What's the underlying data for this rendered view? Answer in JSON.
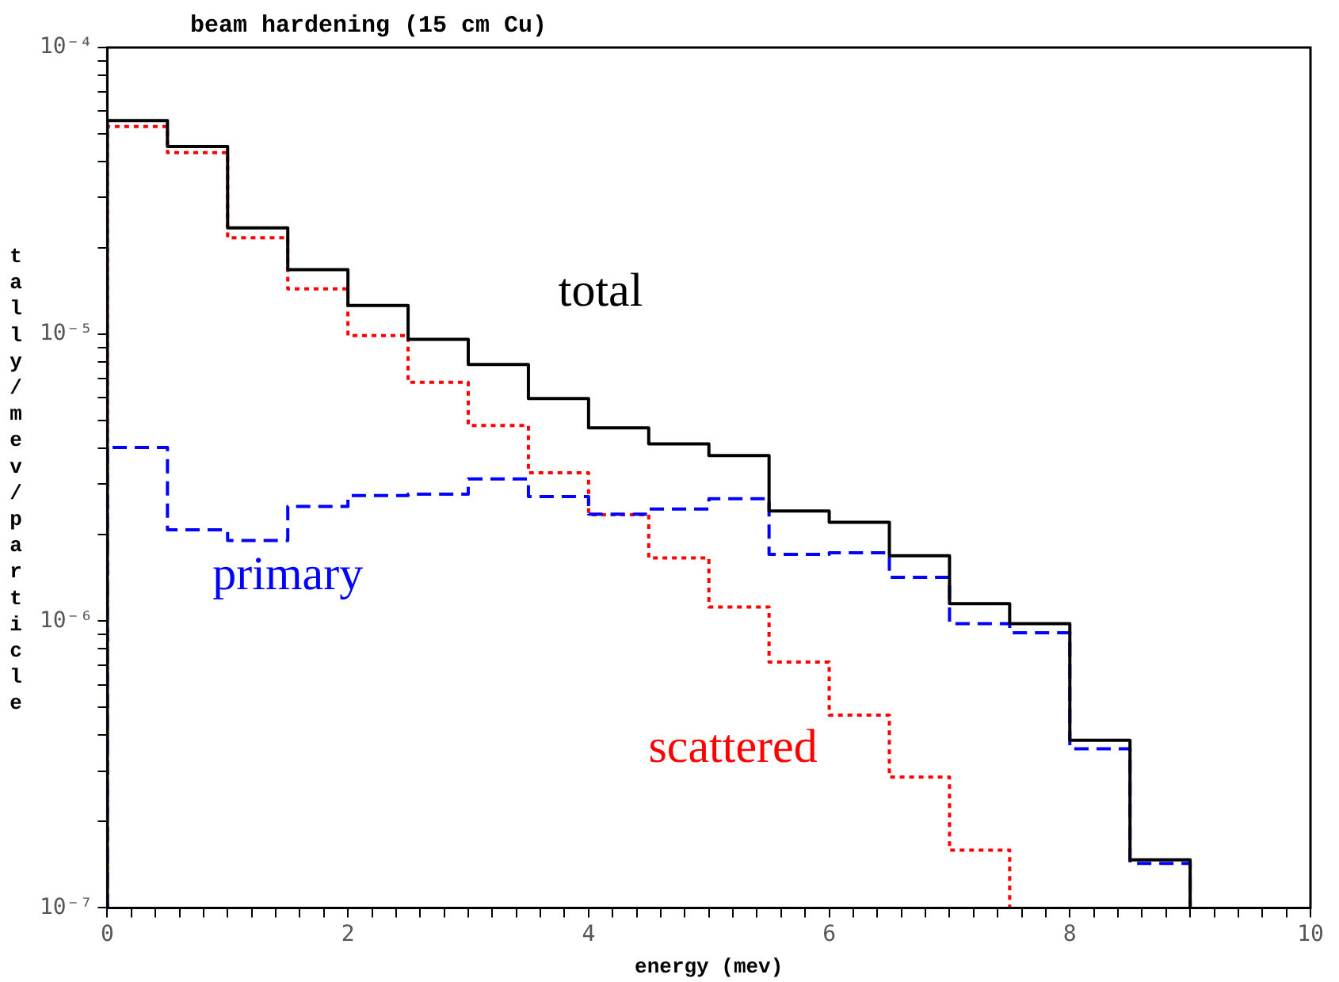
{
  "chart_data": {
    "type": "histogram",
    "title": "beam hardening (15 cm Cu)",
    "xlabel": "energy (mev)",
    "ylabel": "tally/mev/particle",
    "bins": [
      0,
      0.5,
      1,
      1.5,
      2,
      2.5,
      3,
      3.5,
      4,
      4.5,
      5,
      5.5,
      6,
      6.5,
      7,
      7.5,
      8,
      8.5,
      9
    ],
    "series": [
      {
        "name": "total",
        "color": "#000000",
        "line_style": "solid",
        "values": [
          5.56e-05,
          4.52e-05,
          2.35e-05,
          1.68e-05,
          1.26e-05,
          9.6e-06,
          7.85e-06,
          5.97e-06,
          4.72e-06,
          4.15e-06,
          3.78e-06,
          2.42e-06,
          2.21e-06,
          1.69e-06,
          1.15e-06,
          9.8e-07,
          3.84e-07,
          1.47e-07
        ]
      },
      {
        "name": "primary",
        "color": "#0000ff",
        "line_style": "dashed",
        "values": [
          4.03e-06,
          2.08e-06,
          1.91e-06,
          2.51e-06,
          2.74e-06,
          2.77e-06,
          3.13e-06,
          2.72e-06,
          2.36e-06,
          2.46e-06,
          2.67e-06,
          1.71e-06,
          1.73e-06,
          1.42e-06,
          9.8e-07,
          9.1e-07,
          3.59e-07,
          1.43e-07
        ]
      },
      {
        "name": "scattered",
        "color": "#ff0000",
        "line_style": "dotted",
        "bins": [
          0,
          0.5,
          1,
          1.5,
          2,
          2.5,
          3,
          3.5,
          4,
          4.5,
          5,
          5.5,
          6,
          6.5,
          7,
          7.5
        ],
        "values": [
          5.3e-05,
          4.3e-05,
          2.17e-05,
          1.44e-05,
          9.9e-06,
          6.8e-06,
          4.81e-06,
          3.29e-06,
          2.35e-06,
          1.66e-06,
          1.12e-06,
          7.2e-07,
          4.7e-07,
          2.86e-07,
          1.59e-07
        ]
      }
    ],
    "log": "y",
    "grid": false,
    "legend": false,
    "xlim": [
      0,
      10
    ],
    "xticks": [
      0,
      {
        "value": 0.2,
        "label": null
      },
      {
        "value": 0.4,
        "label": null
      },
      {
        "value": 0.6,
        "label": null
      },
      {
        "value": 0.8,
        "label": null
      },
      {
        "value": 1,
        "label": null
      },
      {
        "value": 1.2,
        "label": null
      },
      {
        "value": 1.4,
        "label": null
      },
      {
        "value": 1.6,
        "label": null
      },
      {
        "value": 1.8,
        "label": null
      },
      2,
      {
        "value": 2.2,
        "label": null
      },
      {
        "value": 2.4,
        "label": null
      },
      {
        "value": 2.6,
        "label": null
      },
      {
        "value": 2.8,
        "label": null
      },
      {
        "value": 3,
        "label": null
      },
      {
        "value": 3.2,
        "label": null
      },
      {
        "value": 3.4,
        "label": null
      },
      {
        "value": 3.6,
        "label": null
      },
      {
        "value": 3.8,
        "label": null
      },
      4,
      {
        "value": 4.2,
        "label": null
      },
      {
        "value": 4.4,
        "label": null
      },
      {
        "value": 4.6,
        "label": null
      },
      {
        "value": 4.8,
        "label": null
      },
      {
        "value": 5,
        "label": null
      },
      {
        "value": 5.2,
        "label": null
      },
      {
        "value": 5.4,
        "label": null
      },
      {
        "value": 5.6,
        "label": null
      },
      {
        "value": 5.8,
        "label": null
      },
      6,
      {
        "value": 6.2,
        "label": null
      },
      {
        "value": 6.4,
        "label": null
      },
      {
        "value": 6.6,
        "label": null
      },
      {
        "value": 6.8,
        "label": null
      },
      {
        "value": 7,
        "label": null
      },
      {
        "value": 7.2,
        "label": null
      },
      {
        "value": 7.4,
        "label": null
      },
      {
        "value": 7.6,
        "label": null
      },
      {
        "value": 7.8,
        "label": null
      },
      8,
      {
        "value": 8.2,
        "label": null
      },
      {
        "value": 8.4,
        "label": null
      },
      {
        "value": 8.6,
        "label": null
      },
      {
        "value": 8.8,
        "label": null
      },
      {
        "value": 9,
        "label": null
      },
      {
        "value": 9.2,
        "label": null
      },
      {
        "value": 9.4,
        "label": null
      },
      {
        "value": 9.6,
        "label": null
      },
      {
        "value": 9.8,
        "label": null
      },
      10
    ],
    "ylim": [
      1e-07,
      0.0001
    ],
    "yticks": [
      {
        "value": 1e-07,
        "label": "10⁻⁷"
      },
      {
        "value": 2e-07,
        "label": null
      },
      {
        "value": 3e-07,
        "label": null
      },
      {
        "value": 4e-07,
        "label": null
      },
      {
        "value": 5e-07,
        "label": null
      },
      {
        "value": 6e-07,
        "label": null
      },
      {
        "value": 7e-07,
        "label": null
      },
      {
        "value": 8e-07,
        "label": null
      },
      {
        "value": 9e-07,
        "label": null
      },
      {
        "value": 1e-06,
        "label": "10⁻⁶"
      },
      {
        "value": 2e-06,
        "label": null
      },
      {
        "value": 3e-06,
        "label": null
      },
      {
        "value": 4e-06,
        "label": null
      },
      {
        "value": 5e-06,
        "label": null
      },
      {
        "value": 6e-06,
        "label": null
      },
      {
        "value": 7e-06,
        "label": null
      },
      {
        "value": 8e-06,
        "label": null
      },
      {
        "value": 9e-06,
        "label": null
      },
      {
        "value": 1e-05,
        "label": "10⁻⁵"
      },
      {
        "value": 2e-05,
        "label": null
      },
      {
        "value": 3e-05,
        "label": null
      },
      {
        "value": 4e-05,
        "label": null
      },
      {
        "value": 5e-05,
        "label": null
      },
      {
        "value": 6e-05,
        "label": null
      },
      {
        "value": 7e-05,
        "label": null
      },
      {
        "value": 8e-05,
        "label": null
      },
      {
        "value": 9e-05,
        "label": null
      },
      {
        "value": 0.0001,
        "label": "10⁻⁴"
      }
    ]
  }
}
